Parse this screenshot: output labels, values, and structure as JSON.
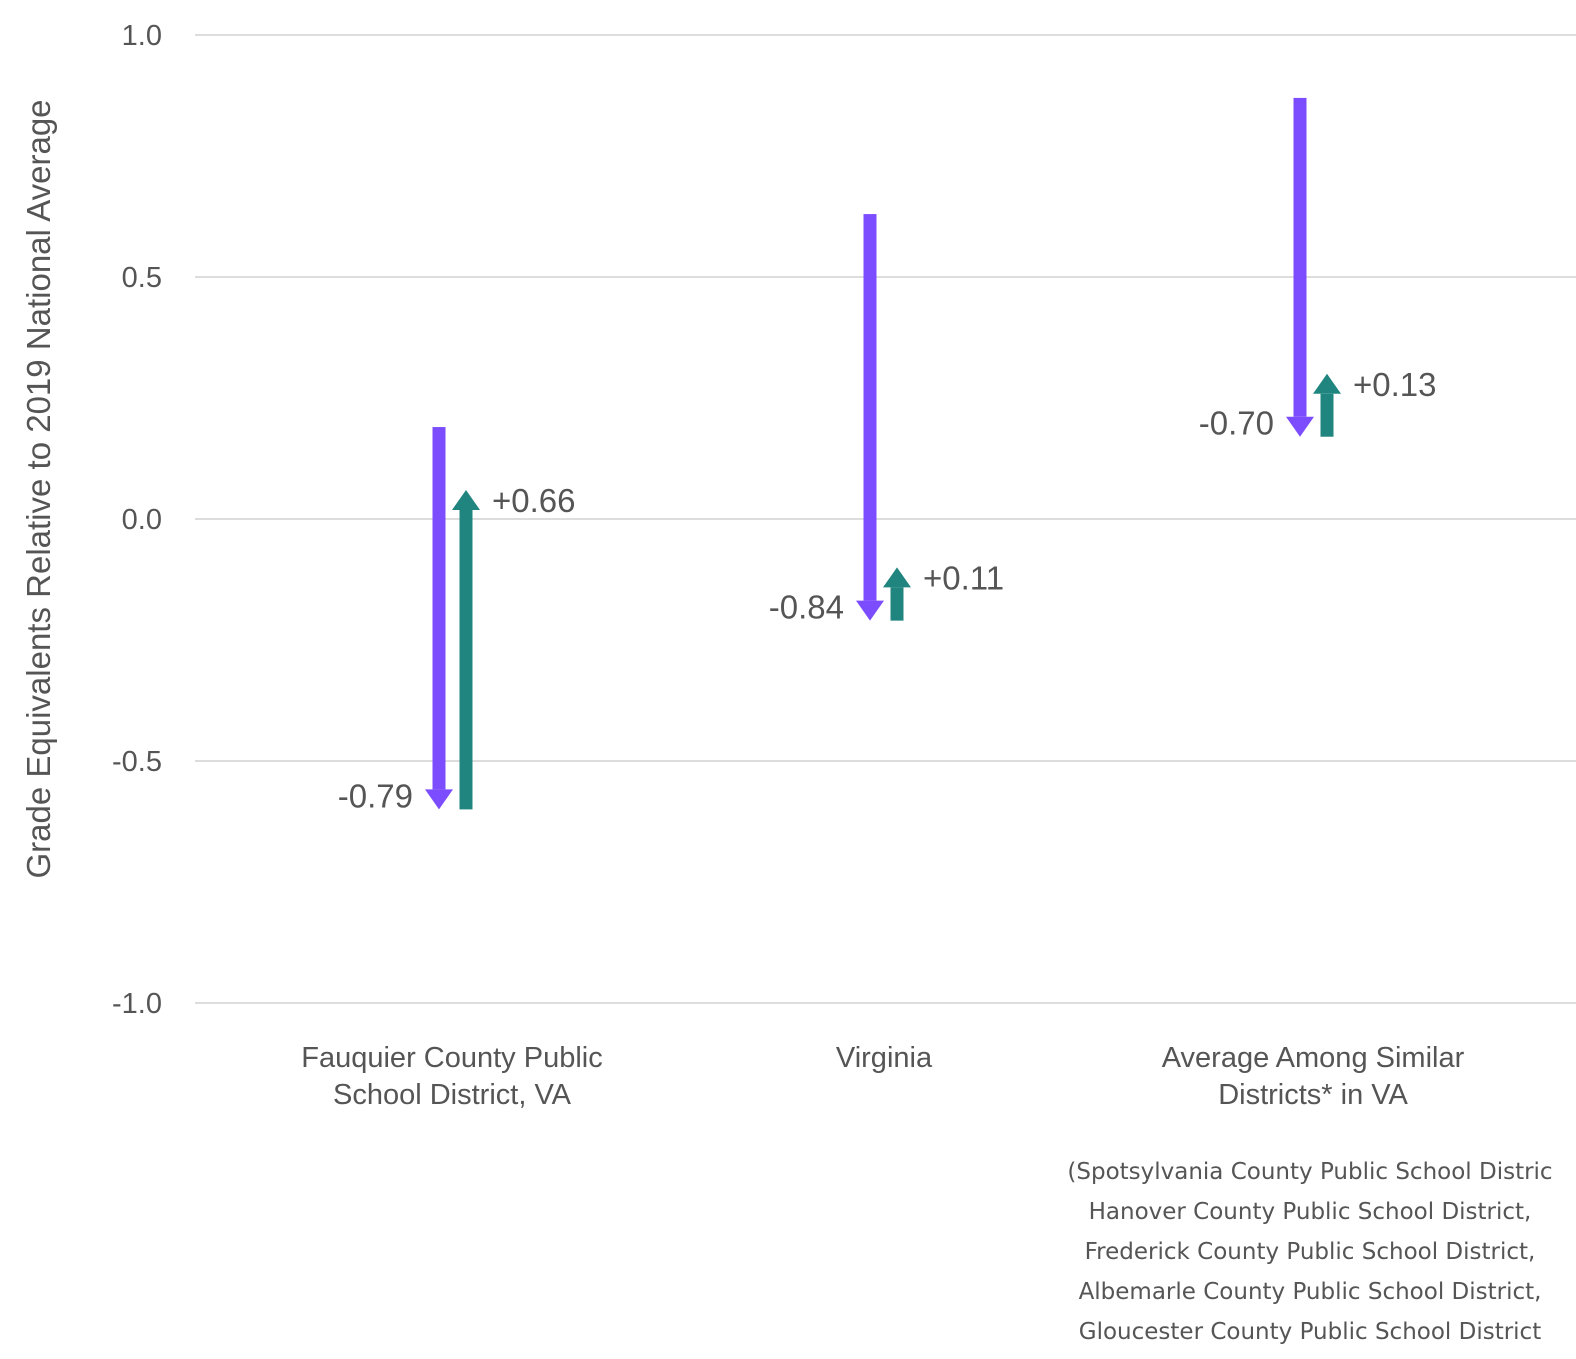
{
  "chart_data": {
    "type": "arrow",
    "ylabel": "Grade Equivalents Relative to 2019 National Average",
    "ylim": [
      -1.0,
      1.0
    ],
    "yticks": [
      {
        "value": 1.0,
        "label": "1.0"
      },
      {
        "value": 0.5,
        "label": "0.5"
      },
      {
        "value": 0.0,
        "label": "0.0"
      },
      {
        "value": -0.5,
        "label": "-0.5"
      },
      {
        "value": -1.0,
        "label": "-1.0"
      }
    ],
    "grid": true,
    "categories": [
      {
        "label_lines": [
          "Fauquier County Public",
          "School District, VA"
        ],
        "decline": {
          "from": 0.19,
          "to": -0.6,
          "label": "-0.79"
        },
        "recovery": {
          "from": -0.6,
          "to": 0.06,
          "label": "+0.66"
        }
      },
      {
        "label_lines": [
          "Virginia"
        ],
        "decline": {
          "from": 0.63,
          "to": -0.21,
          "label": "-0.84"
        },
        "recovery": {
          "from": -0.21,
          "to": -0.1,
          "label": "+0.11"
        }
      },
      {
        "label_lines": [
          "Average Among Similar",
          "Districts* in VA"
        ],
        "decline": {
          "from": 0.87,
          "to": 0.17,
          "label": "-0.70"
        },
        "recovery": {
          "from": 0.17,
          "to": 0.3,
          "label": "+0.13"
        }
      }
    ],
    "colors": {
      "decline": "#7C4DFF",
      "recovery": "#20857F",
      "grid": "#DDDDDD",
      "text": "#555555"
    }
  },
  "footnote": {
    "lines": [
      "(Spotsylvania County Public School Distric",
      "Hanover County Public School District,",
      "Frederick County Public School District,",
      "Albemarle County Public School District,",
      "Gloucester County Public School District"
    ]
  }
}
